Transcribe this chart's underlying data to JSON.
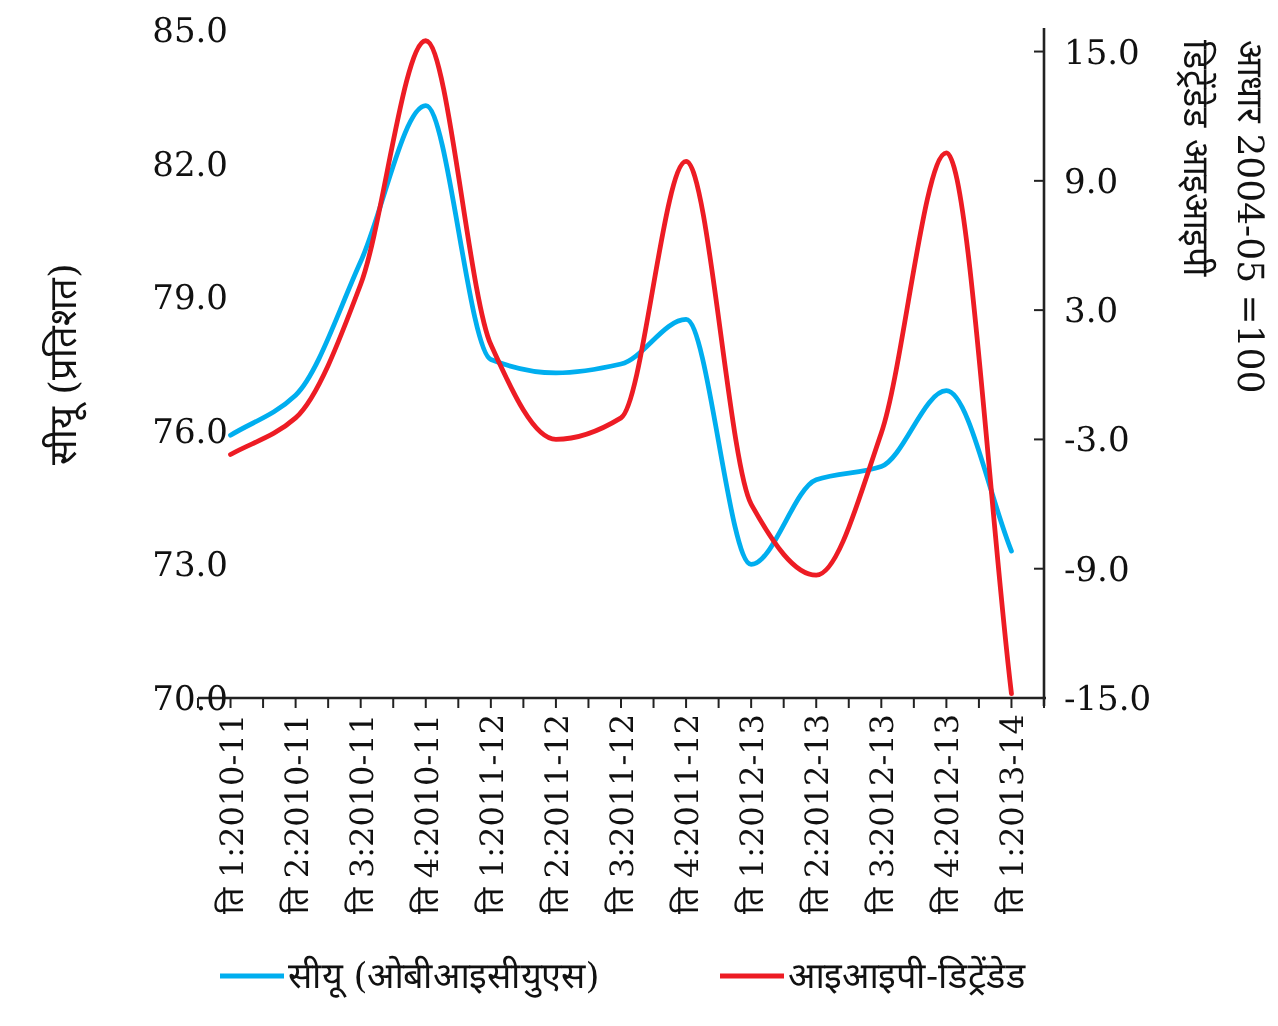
{
  "chart_data": {
    "type": "line",
    "ylabel": "सीयू (प्रतिशत)",
    "y2label": "डिट्रेंडेड आइआइपी\nआधार 2004-05 =100",
    "categories": [
      "ति 1:2010-11",
      "ति 2:2010-11",
      "ति 3:2010-11",
      "ति 4:2010-11",
      "ति 1:2011-12",
      "ति 2:2011-12",
      "ति 3:2011-12",
      "ति 4:2011-12",
      "ति 1:2012-13",
      "ति 2:2012-13",
      "ति 3:2012-13",
      "ति 4:2012-13",
      "ति 1:2013-14"
    ],
    "series": [
      {
        "name": "सीयू (ओबीआइसीयुएस)",
        "color": "#00aeef",
        "values": [
          75.9,
          76.8,
          79.8,
          83.3,
          77.6,
          77.3,
          77.5,
          78.5,
          73.0,
          74.9,
          75.2,
          76.9,
          73.3
        ]
      },
      {
        "name": "आइआइपी-डिट्रेंडेड",
        "color": "#ed1c24",
        "axis": "y2",
        "values": [
          -3.7,
          -2.0,
          4.2,
          15.5,
          1.4,
          -3.0,
          -2.0,
          9.9,
          -6.0,
          -9.3,
          -2.7,
          10.3,
          -14.8
        ]
      }
    ],
    "ylim": [
      70,
      85
    ],
    "yticks": [
      {
        "value": 70,
        "label": "70.0"
      },
      {
        "value": 73,
        "label": "73.0"
      },
      {
        "value": 76,
        "label": "76.0"
      },
      {
        "value": 79,
        "label": "79.0"
      },
      {
        "value": 82,
        "label": "82.0"
      },
      {
        "value": 85,
        "label": "85.0"
      }
    ],
    "y2lim": [
      -15,
      16
    ],
    "y2ticks": [
      {
        "value": -15,
        "label": "-15.0"
      },
      {
        "value": -9,
        "label": "-9.0"
      },
      {
        "value": -3,
        "label": "-3.0"
      },
      {
        "value": 3,
        "label": "3.0"
      },
      {
        "value": 9,
        "label": "9.0"
      },
      {
        "value": 15,
        "label": "15.0"
      }
    ],
    "legend": "bottom",
    "grid": false,
    "marker": "none",
    "line_style": "solid"
  }
}
